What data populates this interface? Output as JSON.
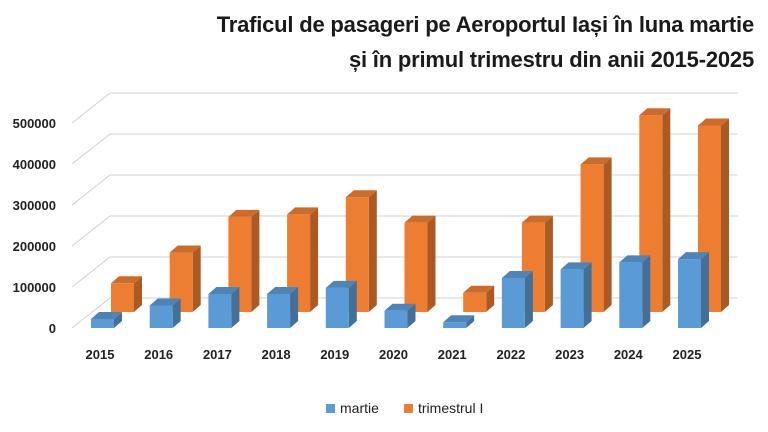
{
  "chart_data": {
    "type": "bar",
    "title": "Traficul de pasageri pe Aeroportul Iași în luna martie",
    "subtitle": "și în primul trimestru din anii 2015-2025",
    "categories": [
      "2015",
      "2016",
      "2017",
      "2018",
      "2019",
      "2020",
      "2021",
      "2022",
      "2023",
      "2024",
      "2025"
    ],
    "series": [
      {
        "name": "martie",
        "color": "#5b9bd5",
        "values": [
          22000,
          55000,
          83000,
          83000,
          98000,
          42000,
          14000,
          122000,
          143000,
          160000,
          168000
        ]
      },
      {
        "name": "trimestrul I",
        "color": "#ed7d31",
        "values": [
          70000,
          145000,
          232000,
          238000,
          280000,
          218000,
          47000,
          218000,
          360000,
          480000,
          455000
        ]
      }
    ],
    "ylim": [
      0,
      500000
    ],
    "yticks": [
      0,
      100000,
      200000,
      300000,
      400000,
      500000
    ],
    "grid": true,
    "legend": "bottom"
  }
}
